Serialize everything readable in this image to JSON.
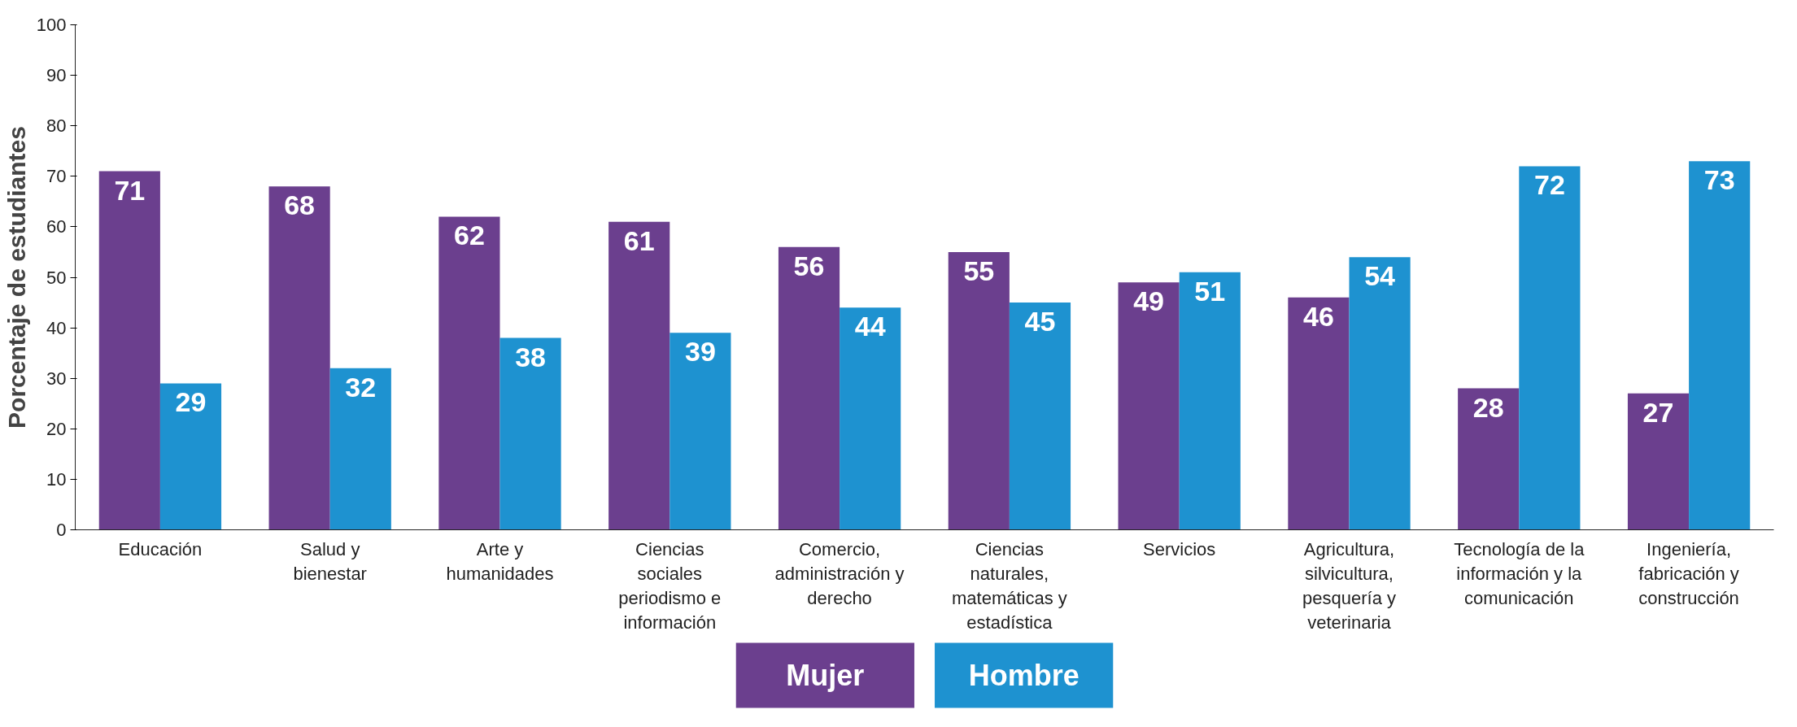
{
  "chart_data": {
    "type": "bar",
    "ylabel": "Porcentaje de estudiantes",
    "categories": [
      "Educación",
      "Salud y bienestar",
      "Arte y humanidades",
      "Ciencias sociales periodismo e información",
      "Comercio, administración y derecho",
      "Ciencias naturales, matemáticas y estadística",
      "Servicios",
      "Agricultura, silvicultura, pesquería y veterinaria",
      "Tecnología de la información y la comunicación",
      "Ingeniería, fabricación y construcción"
    ],
    "series": [
      {
        "name": "Mujer",
        "color": "#6b3f8e",
        "values": [
          71,
          68,
          62,
          61,
          56,
          55,
          49,
          46,
          28,
          27
        ]
      },
      {
        "name": "Hombre",
        "color": "#1e92d0",
        "values": [
          29,
          32,
          38,
          39,
          44,
          45,
          51,
          54,
          72,
          73
        ]
      }
    ],
    "ylim": [
      0,
      100
    ],
    "yticks": [
      0,
      10,
      20,
      30,
      40,
      50,
      60,
      70,
      80,
      90,
      100
    ],
    "grid": false,
    "legend": "bottom",
    "data_labels": true
  }
}
